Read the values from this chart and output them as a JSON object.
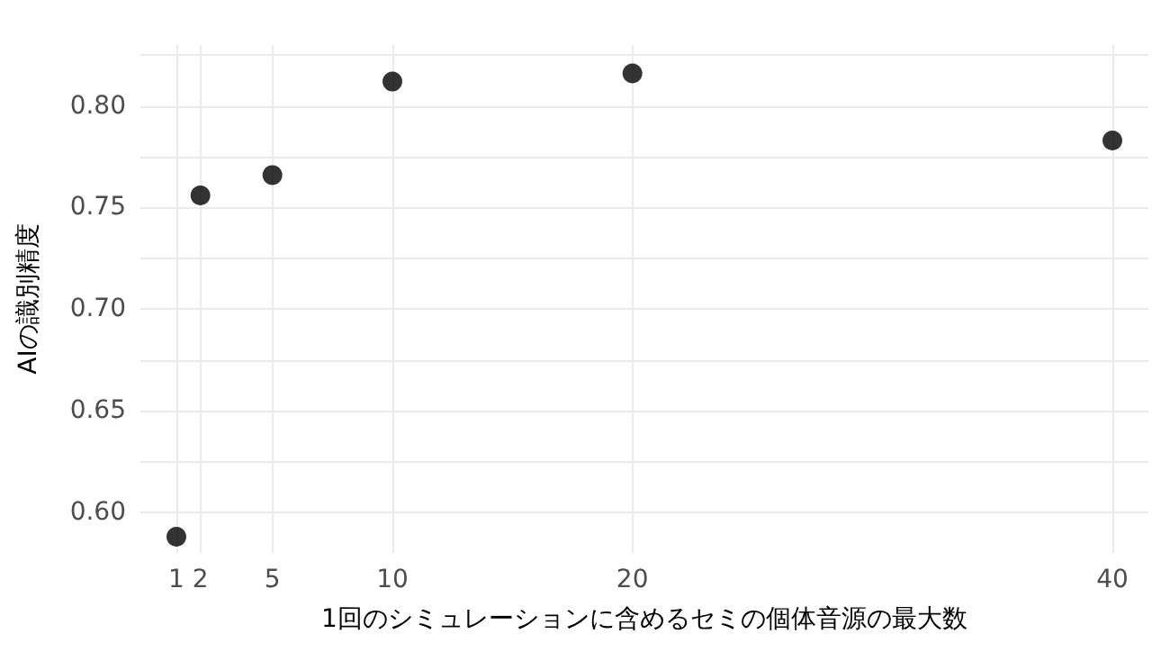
{
  "chart_data": {
    "type": "scatter",
    "xlabel": "1回のシミュレーションに含めるセミの個体音源の最大数",
    "ylabel": "AIの識別精度",
    "x": [
      1,
      2,
      5,
      10,
      20,
      40
    ],
    "series": [
      {
        "color": "#000000",
        "values": [
          0.588,
          0.756,
          0.766,
          0.812,
          0.816,
          0.783
        ]
      }
    ],
    "xlim": [
      -0.5,
      41.5
    ],
    "ylim": [
      0.58,
      0.83
    ],
    "xticks": [
      1,
      2,
      5,
      10,
      20,
      40
    ],
    "yticks": [
      {
        "value": 0.6,
        "label": "0.60"
      },
      {
        "value": 0.625,
        "label": null
      },
      {
        "value": 0.65,
        "label": "0.65"
      },
      {
        "value": 0.675,
        "label": null
      },
      {
        "value": 0.7,
        "label": "0.70"
      },
      {
        "value": 0.725,
        "label": null
      },
      {
        "value": 0.75,
        "label": "0.75"
      },
      {
        "value": 0.775,
        "label": null
      },
      {
        "value": 0.8,
        "label": "0.80"
      },
      {
        "value": 0.825,
        "label": null
      }
    ],
    "grid": true,
    "marker": "circle"
  }
}
